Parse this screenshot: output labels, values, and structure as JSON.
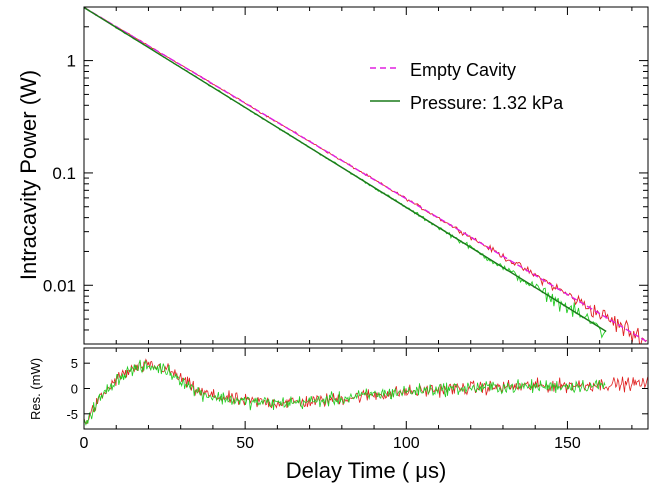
{
  "chart_data": [
    {
      "panel": "main",
      "type": "line",
      "xlabel": "",
      "ylabel": "Intracavity Power (W)",
      "yscale": "log",
      "xlim": [
        0,
        175
      ],
      "ylim": [
        0.003,
        3
      ],
      "yticks": [
        {
          "value": 1,
          "label": "1"
        },
        {
          "value": 0.1,
          "label": "0.1"
        },
        {
          "value": 0.01,
          "label": "0.01"
        }
      ],
      "xticks": [
        {
          "value": 0,
          "label": ""
        },
        {
          "value": 50,
          "label": ""
        },
        {
          "value": 100,
          "label": ""
        },
        {
          "value": 150,
          "label": ""
        }
      ],
      "grid": false,
      "legend_position": "top-right",
      "series": [
        {
          "name": "Empty Cavity",
          "style": "dashed",
          "color": "#e020e0",
          "fit": {
            "A": 2.97,
            "tau_us": 25.5,
            "x_end": 175
          },
          "data_color": "#e02020",
          "data_x_end": 175
        },
        {
          "name": "Pressure: 1.32 kPa",
          "style": "solid",
          "color": "#1a7a1a",
          "fit": {
            "A": 2.97,
            "tau_us": 24.4,
            "x_end": 162
          },
          "data_color": "#22cc22",
          "data_x_end": 162
        }
      ]
    },
    {
      "panel": "residuals",
      "type": "line",
      "xlabel": "Delay Time ( μs)",
      "ylabel": "Res. (mW)",
      "xlim": [
        0,
        175
      ],
      "ylim": [
        -8,
        8
      ],
      "xticks": [
        {
          "value": 0,
          "label": "0"
        },
        {
          "value": 50,
          "label": "50"
        },
        {
          "value": 100,
          "label": "100"
        },
        {
          "value": 150,
          "label": "150"
        }
      ],
      "yticks": [
        {
          "value": 5,
          "label": "5"
        },
        {
          "value": 0,
          "label": "0"
        },
        {
          "value": -5,
          "label": "-5"
        }
      ],
      "series": [
        {
          "color": "#e02020",
          "x_end": 175,
          "shape_points": [
            [
              0,
              -7
            ],
            [
              5,
              -2
            ],
            [
              10,
              1.8
            ],
            [
              15,
              3.8
            ],
            [
              20,
              4.5
            ],
            [
              25,
              4
            ],
            [
              30,
              2
            ],
            [
              35,
              -0.5
            ],
            [
              40,
              -1.5
            ],
            [
              50,
              -2.5
            ],
            [
              60,
              -2.8
            ],
            [
              70,
              -2.6
            ],
            [
              80,
              -2
            ],
            [
              90,
              -1.2
            ],
            [
              100,
              -0.7
            ],
            [
              110,
              -0.2
            ],
            [
              120,
              0.1
            ],
            [
              130,
              0.3
            ],
            [
              140,
              0.5
            ],
            [
              150,
              0.6
            ],
            [
              160,
              0.8
            ],
            [
              175,
              1
            ]
          ]
        },
        {
          "color": "#22cc22",
          "x_end": 162,
          "shape_points": [
            [
              0,
              -7
            ],
            [
              5,
              -2
            ],
            [
              10,
              1.8
            ],
            [
              15,
              3.8
            ],
            [
              20,
              4.3
            ],
            [
              25,
              3.9
            ],
            [
              30,
              1.8
            ],
            [
              35,
              -0.6
            ],
            [
              40,
              -1.6
            ],
            [
              50,
              -2.6
            ],
            [
              60,
              -2.9
            ],
            [
              70,
              -2.6
            ],
            [
              80,
              -2
            ],
            [
              90,
              -1.2
            ],
            [
              100,
              -0.6
            ],
            [
              110,
              -0.1
            ],
            [
              120,
              0.1
            ],
            [
              130,
              0.3
            ],
            [
              140,
              0.4
            ],
            [
              150,
              0.5
            ],
            [
              162,
              0.6
            ]
          ]
        }
      ]
    }
  ]
}
